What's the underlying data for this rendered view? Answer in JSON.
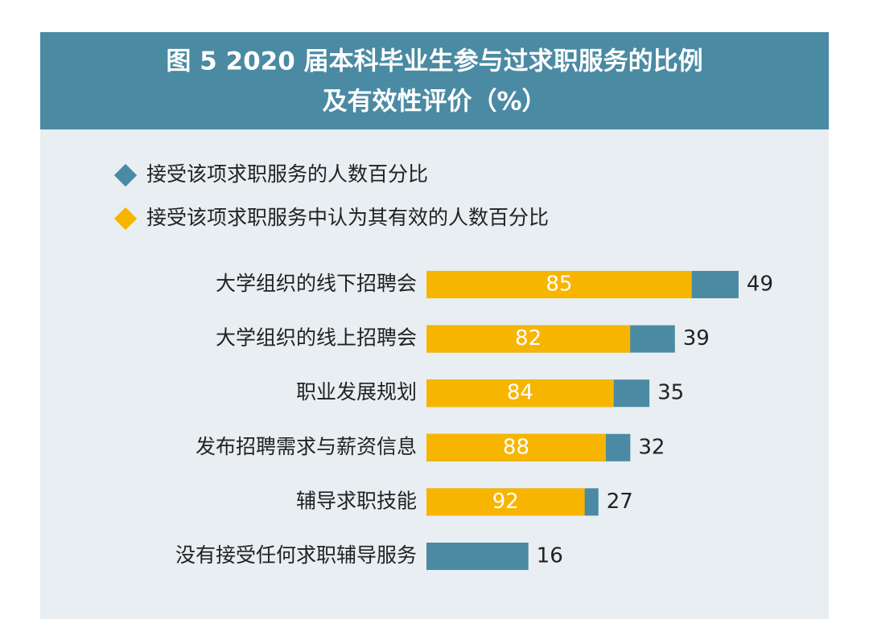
{
  "chart_data": {
    "type": "nested-bar",
    "title": [
      "图 5 2020 届本科毕业生参与过求职服务的比例",
      "及有效性评价（%）"
    ],
    "categories": [
      "大学组织的线下招聘会",
      "大学组织的线上招聘会",
      "职业发展规划",
      "发布招聘需求与薪资信息",
      "辅导求职技能",
      "没有接受任何求职辅导服务"
    ],
    "series": [
      {
        "name": "接受该项求职服务的人数百分比",
        "color": "#4a8aa3",
        "values": [
          49,
          39,
          35,
          32,
          27,
          16
        ]
      },
      {
        "name": "接受该项求职服务中认为其有效的人数百分比",
        "color": "#f7b500",
        "values": [
          85,
          82,
          84,
          88,
          92,
          null
        ]
      }
    ],
    "xlim": [
      0,
      60
    ]
  }
}
